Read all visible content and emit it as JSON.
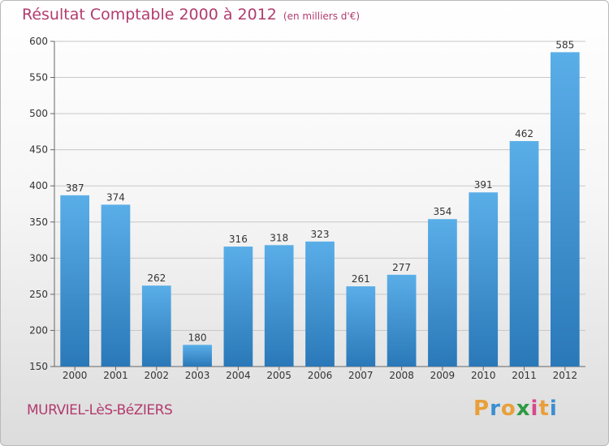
{
  "header": {
    "title": "Résultat Comptable 2000 à 2012",
    "unit": "(en milliers d'€)"
  },
  "footer": {
    "commune": "MURVIEL-LèS-BéZIERS"
  },
  "logo": {
    "text": "Proxiti",
    "letters": [
      {
        "ch": "P",
        "color": "#e8a03a"
      },
      {
        "ch": "r",
        "color": "#3a8fd0"
      },
      {
        "ch": "o",
        "color": "#e8a03a"
      },
      {
        "ch": "x",
        "color": "#2e9a42"
      },
      {
        "ch": "i",
        "color": "#d64a8c"
      },
      {
        "ch": "t",
        "color": "#e8a03a"
      },
      {
        "ch": "i",
        "color": "#3a8fd0"
      }
    ]
  },
  "colors": {
    "bar_top": "#5aaee8",
    "bar_bottom": "#2a78b8",
    "text_accent": "#b23b6e",
    "grid": "#c8c8c8"
  },
  "chart_data": {
    "type": "bar",
    "title": "Résultat Comptable 2000 à 2012",
    "subtitle": "(en milliers d'€)",
    "categories": [
      "2000",
      "2001",
      "2002",
      "2003",
      "2004",
      "2005",
      "2006",
      "2007",
      "2008",
      "2009",
      "2010",
      "2011",
      "2012"
    ],
    "values": [
      387,
      374,
      262,
      180,
      316,
      318,
      323,
      261,
      277,
      354,
      391,
      462,
      585
    ],
    "ylim": [
      150,
      600
    ],
    "yticks": [
      150,
      200,
      250,
      300,
      350,
      400,
      450,
      500,
      550,
      600
    ],
    "grid": true,
    "data_labels": true
  }
}
